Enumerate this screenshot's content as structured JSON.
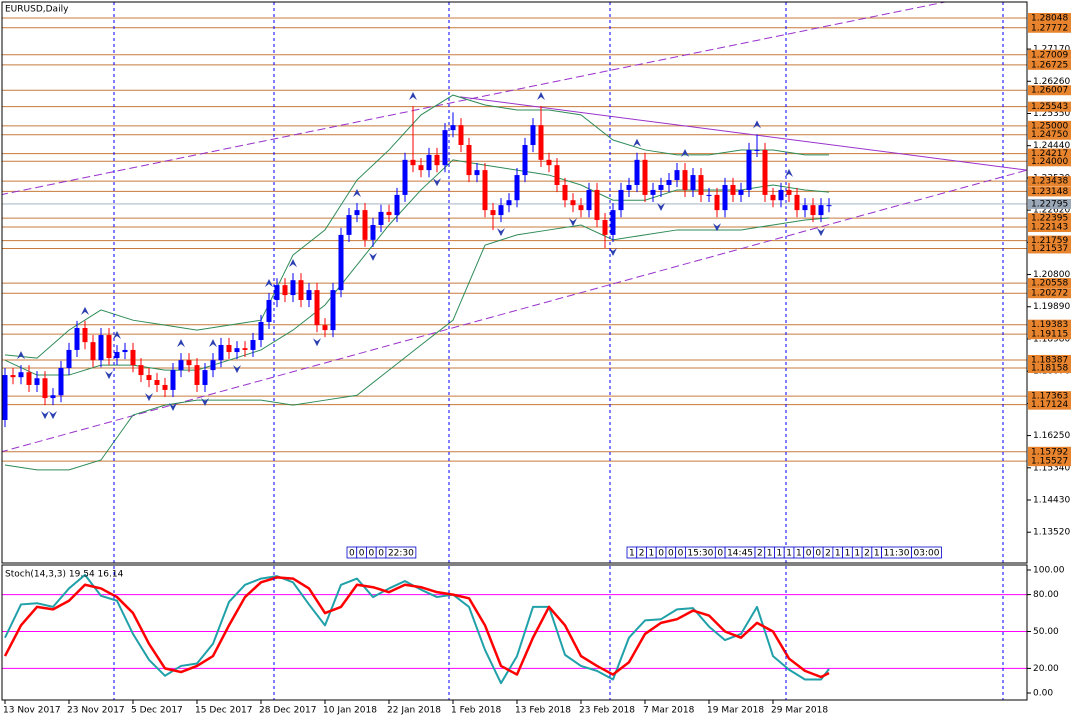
{
  "chart_data": [
    {
      "type": "candlestick",
      "title": "EURUSD,Daily",
      "xlim": [
        -0.625,
        127.75
      ],
      "ylim": [
        1.1265,
        1.285
      ],
      "grid": false,
      "yticks": [
        {
          "value": 1.1352,
          "label": "1.13520"
        },
        {
          "value": 1.1443,
          "label": "1.14430"
        },
        {
          "value": 1.1534,
          "label": "1.15340"
        },
        {
          "value": 1.1625,
          "label": "1.16250"
        },
        {
          "value": 1.1716,
          "label": "1.17160"
        },
        {
          "value": 1.1807,
          "label": "1.18070"
        },
        {
          "value": 1.1898,
          "label": "1.18980"
        },
        {
          "value": 1.1989,
          "label": "1.19890"
        },
        {
          "value": 1.208,
          "label": "1.20800"
        },
        {
          "value": 1.2171,
          "label": "1.21710"
        },
        {
          "value": 1.2262,
          "label": "1.22620"
        },
        {
          "value": 1.2353,
          "label": "1.23530"
        },
        {
          "value": 1.2444,
          "label": "1.24440"
        },
        {
          "value": 1.2535,
          "label": "1.25350"
        },
        {
          "value": 1.2626,
          "label": "1.26260"
        },
        {
          "value": 1.2717,
          "label": "1.27170"
        }
      ],
      "up_color": "#0000ff",
      "down_color": "#ff0000",
      "open": [
        1.1669,
        1.1796,
        1.179,
        1.1804,
        1.1768,
        1.1787,
        1.1731,
        1.1739,
        1.1816,
        1.1867,
        1.1929,
        1.1889,
        1.1838,
        1.1909,
        1.1844,
        1.1861,
        1.1867,
        1.1824,
        1.1796,
        1.1782,
        1.1768,
        1.1754,
        1.181,
        1.1838,
        1.1824,
        1.1768,
        1.181,
        1.1838,
        1.1881,
        1.1861,
        1.1872,
        1.1867,
        1.1895,
        1.1946,
        1.2008,
        1.205,
        1.2022,
        1.2064,
        1.2008,
        1.2036,
        1.1937,
        1.1923,
        1.2036,
        1.2192,
        1.2248,
        1.2262,
        1.2178,
        1.222,
        1.2257,
        1.2248,
        1.2305,
        1.2404,
        1.2389,
        1.2375,
        1.2418,
        1.2389,
        1.2488,
        1.2502,
        1.2446,
        1.2361,
        1.2375,
        1.2262,
        1.2248,
        1.2276,
        1.229,
        1.2361,
        1.2446,
        1.2502,
        1.2404,
        1.2389,
        1.2333,
        1.229,
        1.2276,
        1.2262,
        1.2319,
        1.2234,
        1.2192,
        1.2262,
        1.2319,
        1.2333,
        1.2404,
        1.2305,
        1.2319,
        1.2333,
        1.2347,
        1.2375,
        1.2319,
        1.2361,
        1.2305,
        1.2305,
        1.2262,
        1.2333,
        1.2305,
        1.2319,
        1.2432,
        1.2432,
        1.2305,
        1.229,
        1.2319,
        1.2305,
        1.2262,
        1.2276,
        1.2248,
        1.2276
      ],
      "high": [
        1.1816,
        1.1816,
        1.1824,
        1.1824,
        1.1807,
        1.1807,
        1.1759,
        1.1836,
        1.1887,
        1.1949,
        1.1949,
        1.1909,
        1.1929,
        1.1929,
        1.1881,
        1.1887,
        1.1887,
        1.1844,
        1.1816,
        1.1802,
        1.1788,
        1.183,
        1.1858,
        1.1858,
        1.1844,
        1.183,
        1.1858,
        1.1901,
        1.1901,
        1.1892,
        1.1892,
        1.1915,
        1.1966,
        1.2028,
        1.207,
        1.207,
        1.2084,
        1.2084,
        1.2056,
        1.2056,
        1.1957,
        1.2056,
        1.2212,
        1.2268,
        1.2282,
        1.2282,
        1.224,
        1.2277,
        1.2277,
        1.2325,
        1.2424,
        1.2556,
        1.2409,
        1.2438,
        1.2438,
        1.2508,
        1.2538,
        1.2522,
        1.2466,
        1.2395,
        1.2395,
        1.2282,
        1.2296,
        1.231,
        1.2381,
        1.2466,
        1.2522,
        1.2556,
        1.2424,
        1.2409,
        1.2353,
        1.231,
        1.2296,
        1.2339,
        1.2339,
        1.2254,
        1.2282,
        1.2339,
        1.2353,
        1.2424,
        1.2424,
        1.2339,
        1.2353,
        1.2367,
        1.2395,
        1.2395,
        1.2381,
        1.2381,
        1.2325,
        1.2325,
        1.2353,
        1.2353,
        1.2339,
        1.2452,
        1.2476,
        1.2452,
        1.2325,
        1.2339,
        1.2339,
        1.2325,
        1.2296,
        1.2296,
        1.2296,
        1.2296
      ],
      "low": [
        1.1649,
        1.177,
        1.177,
        1.1748,
        1.1748,
        1.1711,
        1.1711,
        1.1719,
        1.1796,
        1.1847,
        1.1869,
        1.1818,
        1.1818,
        1.1824,
        1.1824,
        1.1841,
        1.1804,
        1.1776,
        1.1762,
        1.1748,
        1.1734,
        1.1734,
        1.179,
        1.1804,
        1.1748,
        1.1748,
        1.179,
        1.1818,
        1.1841,
        1.1841,
        1.1847,
        1.1847,
        1.1875,
        1.1926,
        1.1988,
        1.2002,
        1.2002,
        1.1988,
        1.1988,
        1.1917,
        1.1903,
        1.1903,
        1.2016,
        1.2172,
        1.2228,
        1.2158,
        1.2158,
        1.22,
        1.2228,
        1.2228,
        1.2285,
        1.2369,
        1.2355,
        1.2355,
        1.2369,
        1.2369,
        1.2468,
        1.2426,
        1.2341,
        1.2341,
        1.2242,
        1.2206,
        1.2228,
        1.2256,
        1.227,
        1.2341,
        1.2426,
        1.2384,
        1.2369,
        1.2313,
        1.227,
        1.2256,
        1.2242,
        1.2242,
        1.2214,
        1.2155,
        1.2172,
        1.2242,
        1.2299,
        1.2313,
        1.2285,
        1.2285,
        1.2299,
        1.2313,
        1.2327,
        1.2299,
        1.2299,
        1.2285,
        1.2285,
        1.2242,
        1.2242,
        1.2285,
        1.2285,
        1.2299,
        1.2412,
        1.2285,
        1.227,
        1.227,
        1.2285,
        1.2242,
        1.2242,
        1.2228,
        1.2228,
        1.2256
      ],
      "close": [
        1.1796,
        1.179,
        1.1804,
        1.1768,
        1.1787,
        1.1731,
        1.1739,
        1.1816,
        1.1867,
        1.1929,
        1.1889,
        1.1838,
        1.1909,
        1.1844,
        1.1861,
        1.1867,
        1.1824,
        1.1796,
        1.1782,
        1.1768,
        1.1754,
        1.181,
        1.1838,
        1.1824,
        1.1768,
        1.181,
        1.1838,
        1.1881,
        1.1861,
        1.1872,
        1.1867,
        1.1895,
        1.1946,
        1.2008,
        1.205,
        1.2022,
        1.2064,
        1.2008,
        1.2036,
        1.1937,
        1.1923,
        1.2036,
        1.2192,
        1.2248,
        1.2262,
        1.2178,
        1.222,
        1.2257,
        1.2248,
        1.2305,
        1.2404,
        1.2389,
        1.2375,
        1.2418,
        1.2389,
        1.2488,
        1.2502,
        1.2446,
        1.2361,
        1.2375,
        1.2262,
        1.2248,
        1.2276,
        1.229,
        1.2361,
        1.2446,
        1.2502,
        1.2404,
        1.2389,
        1.2333,
        1.229,
        1.2276,
        1.2262,
        1.2319,
        1.2234,
        1.2192,
        1.2262,
        1.2319,
        1.2333,
        1.2404,
        1.2305,
        1.2319,
        1.2333,
        1.2347,
        1.2375,
        1.2319,
        1.2361,
        1.2305,
        1.2305,
        1.2262,
        1.2333,
        1.2305,
        1.2319,
        1.2432,
        1.2432,
        1.2305,
        1.229,
        1.2319,
        1.2305,
        1.2262,
        1.2276,
        1.2248,
        1.2276,
        1.2276
      ],
      "levels": [
        1.28048,
        1.27772,
        1.27009,
        1.26725,
        1.26007,
        1.25543,
        {
          "value": 1.25,
          "label": "1.25000"
        },
        {
          "value": 1.2475,
          "label": "1.24750"
        },
        1.24217,
        {
          "value": 1.24,
          "label": "1.24000"
        },
        1.23438,
        1.23148,
        1.22395,
        1.22143,
        1.21759,
        1.21537,
        1.20558,
        1.20272,
        1.19383,
        1.19115,
        1.18387,
        1.18158,
        1.17363,
        1.17124,
        1.15792,
        1.15527
      ],
      "level_color": "#c87a3c",
      "level_label_color": "#e8842e",
      "last_price": 1.22795,
      "last_price_color": "#9aa8b8",
      "bollinger": {
        "color": "#2e8b57",
        "x": [
          0,
          4,
          8,
          12,
          16,
          20,
          24,
          28,
          32,
          36,
          40,
          44,
          48,
          52,
          56,
          60,
          64,
          68,
          72,
          76,
          80,
          84,
          88,
          92,
          96,
          100,
          103
        ],
        "upper": [
          1.1853,
          1.1844,
          1.1923,
          1.198,
          1.1951,
          1.1937,
          1.1923,
          1.1937,
          1.1951,
          1.2135,
          1.2206,
          1.2347,
          1.2432,
          1.2531,
          1.2587,
          1.2559,
          1.2545,
          1.2545,
          1.2531,
          1.246,
          1.2432,
          1.2418,
          1.2418,
          1.2432,
          1.2432,
          1.2418,
          1.2418
        ],
        "middle": [
          1.1838,
          1.1796,
          1.1796,
          1.1824,
          1.1824,
          1.181,
          1.181,
          1.1838,
          1.1867,
          1.1923,
          1.1994,
          1.2107,
          1.222,
          1.2319,
          1.2404,
          1.2389,
          1.2375,
          1.2361,
          1.2333,
          1.229,
          1.229,
          1.2319,
          1.2319,
          1.2319,
          1.2333,
          1.2319,
          1.2313
        ],
        "lower": [
          1.1542,
          1.1528,
          1.1528,
          1.1556,
          1.1683,
          1.1711,
          1.1725,
          1.1725,
          1.1725,
          1.1711,
          1.1725,
          1.1739,
          1.181,
          1.1881,
          1.1951,
          1.2163,
          1.2192,
          1.2206,
          1.222,
          1.2178,
          1.2192,
          1.2206,
          1.2206,
          1.2206,
          1.222,
          1.2234,
          1.224
        ]
      },
      "trendlines": [
        {
          "x": [
            -0.625,
            127.75
          ],
          "y": [
            1.1578,
            1.2375
          ],
          "color": "#9932cc",
          "dashed": true
        },
        {
          "x": [
            -0.625,
            117.5
          ],
          "y": [
            1.2305,
            1.285
          ],
          "color": "#9932cc",
          "dashed": true
        },
        {
          "x": [
            56.9,
            127.75
          ],
          "y": [
            1.2582,
            1.2375
          ],
          "color": "#9932cc",
          "dashed": false
        }
      ],
      "fractals": {
        "color": "#2c3fb0",
        "up": [
          2,
          10,
          14,
          22,
          26,
          33,
          36,
          44,
          51,
          67,
          79,
          85,
          94,
          98
        ],
        "down": [
          5,
          6,
          13,
          18,
          21,
          25,
          29,
          39,
          46,
          54,
          62,
          71,
          76,
          82,
          89,
          102
        ]
      },
      "events": [
        [
          "0",
          "0",
          "0",
          "0",
          "22:30"
        ],
        [
          "1",
          "2",
          "1",
          "0",
          "0",
          "0",
          "15:30",
          "0",
          "14:45",
          "2",
          "1",
          "1",
          "1",
          "1",
          "0",
          "0",
          "2",
          "1",
          "1",
          "1",
          "2",
          "1",
          "11:30",
          "03:00"
        ]
      ]
    },
    {
      "type": "line",
      "title": "Stoch(14,3,3) 19.54 16.14",
      "xlim": [
        -0.625,
        127.75
      ],
      "ylim": [
        0,
        100
      ],
      "yticks": [
        {
          "value": 100,
          "label": "100.00"
        },
        {
          "value": 80,
          "label": "80.00"
        },
        {
          "value": 50,
          "label": "50.00"
        },
        {
          "value": 20,
          "label": "20.00"
        },
        {
          "value": 0,
          "label": "0.00"
        }
      ],
      "levels": [
        80,
        50,
        20
      ],
      "level_color": "#ff00ff",
      "xticks": [
        {
          "value": 0,
          "label": "13 Nov 2017"
        },
        {
          "value": 8,
          "label": "23 Nov 2017"
        },
        {
          "value": 16,
          "label": "5 Dec 2017"
        },
        {
          "value": 24,
          "label": "15 Dec 2017"
        },
        {
          "value": 32,
          "label": "28 Dec 2017"
        },
        {
          "value": 40,
          "label": "10 Jan 2018"
        },
        {
          "value": 48,
          "label": "22 Jan 2018"
        },
        {
          "value": 56,
          "label": "1 Feb 2018"
        },
        {
          "value": 64,
          "label": "13 Feb 2018"
        },
        {
          "value": 72,
          "label": "23 Feb 2018"
        },
        {
          "value": 80,
          "label": "7 Mar 2018"
        },
        {
          "value": 88,
          "label": "19 Mar 2018"
        },
        {
          "value": 96,
          "label": "29 Mar 2018"
        }
      ],
      "x": [
        0,
        2,
        4,
        6,
        8,
        10,
        12,
        14,
        16,
        18,
        20,
        22,
        24,
        26,
        28,
        30,
        32,
        34,
        36,
        38,
        40,
        42,
        44,
        46,
        48,
        50,
        52,
        54,
        56,
        58,
        60,
        62,
        64,
        66,
        68,
        70,
        72,
        74,
        76,
        78,
        80,
        82,
        84,
        86,
        88,
        90,
        92,
        94,
        96,
        98,
        100,
        102,
        103
      ],
      "series": [
        {
          "color": "#20a0a8",
          "values": [
            45,
            72,
            73,
            70,
            85,
            96,
            79,
            75,
            48,
            27,
            14,
            22,
            24,
            40,
            74,
            88,
            93,
            95,
            90,
            72,
            55,
            88,
            93,
            78,
            85,
            91,
            84,
            78,
            80,
            70,
            35,
            8,
            30,
            70,
            70,
            31,
            22,
            18,
            11,
            45,
            59,
            60,
            68,
            69,
            54,
            43,
            48,
            70,
            30,
            19,
            11,
            11,
            19.54
          ]
        },
        {
          "color": "#ff0000",
          "values": [
            30,
            55,
            70,
            68,
            75,
            88,
            85,
            78,
            65,
            40,
            20,
            17,
            22,
            30,
            55,
            78,
            90,
            94,
            93,
            85,
            65,
            70,
            88,
            86,
            82,
            88,
            86,
            82,
            80,
            77,
            55,
            22,
            15,
            45,
            70,
            55,
            30,
            22,
            15,
            25,
            48,
            57,
            60,
            67,
            63,
            50,
            45,
            57,
            50,
            28,
            18,
            13,
            16.14
          ]
        }
      ]
    }
  ]
}
